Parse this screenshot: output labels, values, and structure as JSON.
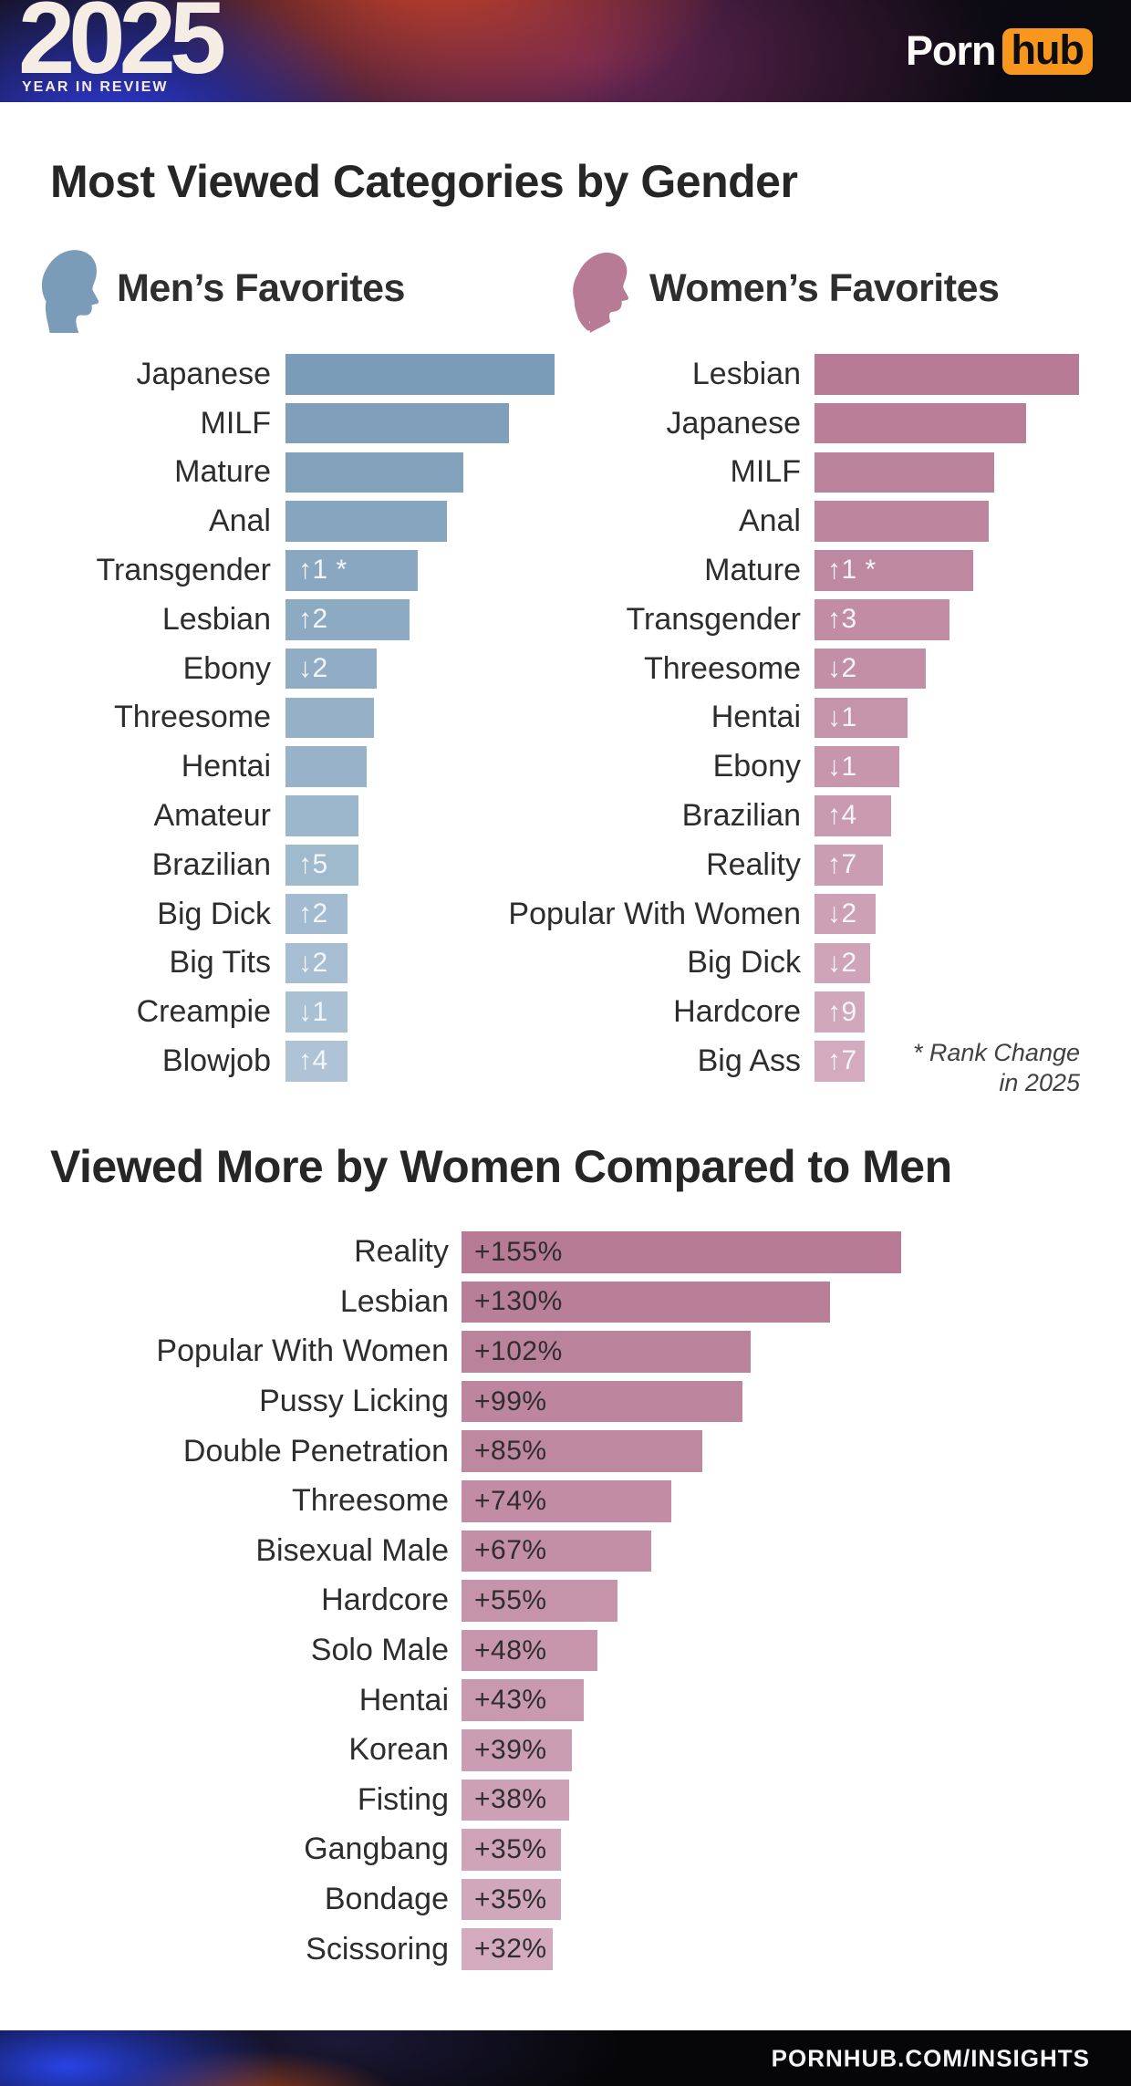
{
  "header": {
    "year": "2025",
    "tagline": "YEAR IN REVIEW",
    "brand_porn": "Porn",
    "brand_hub": "hub"
  },
  "title1": "Most Viewed Categories by Gender",
  "mens_heading": "Men’s Favorites",
  "womens_heading": "Women’s Favorites",
  "rank_note_line1": "* Rank Change",
  "rank_note_line2": "in 2025",
  "title2": "Viewed More by Women Compared to Men",
  "footer": {
    "url": "PORNHUB.COM/INSIGHTS"
  },
  "colors": {
    "accent_orange": "#f7971d",
    "men_bar_start": "#7b9cb8",
    "men_bar_end": "#aec4d6",
    "women_bar_start": "#b77b95",
    "women_bar_end": "#d3aabe",
    "title_text": "#262626",
    "label_text": "#2d2d2d",
    "badge_text": "#f3f6f8",
    "value_text": "#2e2e2e",
    "header_cream": "#f5ede4"
  },
  "chart_data": [
    {
      "type": "bar",
      "orientation": "horizontal",
      "title": "Men's Favorites",
      "legend_position": "none",
      "grid": false,
      "categories": [
        "Japanese",
        "MILF",
        "Mature",
        "Anal",
        "Transgender",
        "Lesbian",
        "Ebony",
        "Threesome",
        "Hentai",
        "Amateur",
        "Brazilian",
        "Big Dick",
        "Big Tits",
        "Creampie",
        "Blowjob"
      ],
      "rank_changes": [
        "",
        "",
        "",
        "",
        "↑1 *",
        "↑2",
        "↓2",
        "",
        "",
        "",
        "↑5",
        "↑2",
        "↓2",
        "↓1",
        "↑4"
      ],
      "relative_lengths_pct_of_max": [
        100,
        83,
        66,
        60,
        49,
        46,
        34,
        33,
        30,
        27,
        27,
        23,
        23,
        23,
        23
      ]
    },
    {
      "type": "bar",
      "orientation": "horizontal",
      "title": "Women's Favorites",
      "legend_position": "none",
      "grid": false,
      "categories": [
        "Lesbian",
        "Japanese",
        "MILF",
        "Anal",
        "Mature",
        "Transgender",
        "Threesome",
        "Hentai",
        "Ebony",
        "Brazilian",
        "Reality",
        "Popular With Women",
        "Big Dick",
        "Hardcore",
        "Big Ass"
      ],
      "rank_changes": [
        "",
        "",
        "",
        "",
        "↑1 *",
        "↑3",
        "↓2",
        "↓1",
        "↓1",
        "↑4",
        "↑7",
        "↓2",
        "↓2",
        "↑9",
        "↑7"
      ],
      "relative_lengths_pct_of_max": [
        100,
        80,
        68,
        66,
        60,
        51,
        42,
        35,
        32,
        29,
        26,
        23,
        21,
        19,
        19
      ]
    },
    {
      "type": "bar",
      "orientation": "horizontal",
      "title": "Viewed More by Women Compared to Men",
      "legend_position": "none",
      "grid": false,
      "xlabel": "",
      "ylabel": "",
      "xlim": [
        0,
        155
      ],
      "categories": [
        "Reality",
        "Lesbian",
        "Popular With Women",
        "Pussy Licking",
        "Double Penetration",
        "Threesome",
        "Bisexual Male",
        "Hardcore",
        "Solo Male",
        "Hentai",
        "Korean",
        "Fisting",
        "Gangbang",
        "Bondage",
        "Scissoring"
      ],
      "values": [
        155,
        130,
        102,
        99,
        85,
        74,
        67,
        55,
        48,
        43,
        39,
        38,
        35,
        35,
        32
      ],
      "value_labels": [
        "+155%",
        "+130%",
        "+102%",
        "+99%",
        "+85%",
        "+74%",
        "+67%",
        "+55%",
        "+48%",
        "+43%",
        "+39%",
        "+38%",
        "+35%",
        "+35%",
        "+32%"
      ]
    }
  ]
}
